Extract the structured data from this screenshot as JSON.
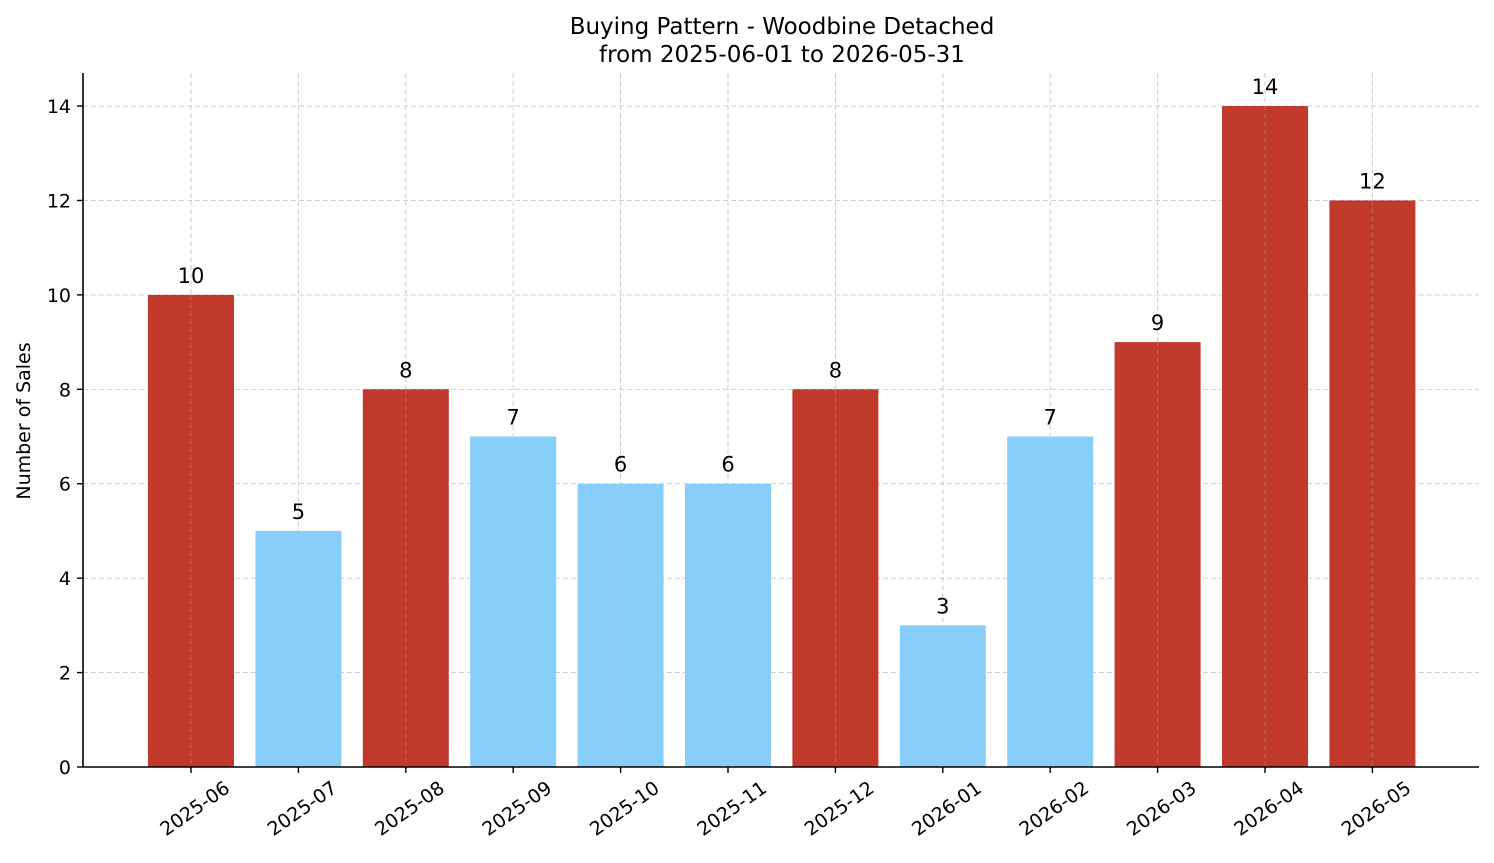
{
  "chart_data": {
    "type": "bar",
    "title_line1": "Buying Pattern - Woodbine Detached",
    "title_line2": "from 2025-06-01 to 2026-05-31",
    "xlabel": "",
    "ylabel": "Number of Sales",
    "ylim": [
      0,
      14.7
    ],
    "yticks": [
      0,
      2,
      4,
      6,
      8,
      10,
      12,
      14
    ],
    "grid": true,
    "categories": [
      "2025-06",
      "2025-07",
      "2025-08",
      "2025-09",
      "2025-10",
      "2025-11",
      "2025-12",
      "2026-01",
      "2026-02",
      "2026-03",
      "2026-04",
      "2026-05"
    ],
    "values": [
      10,
      5,
      8,
      7,
      6,
      6,
      8,
      3,
      7,
      9,
      14,
      12
    ],
    "bar_colors": [
      "#c0392b",
      "#87cefa",
      "#c0392b",
      "#87cefa",
      "#87cefa",
      "#87cefa",
      "#c0392b",
      "#87cefa",
      "#87cefa",
      "#c0392b",
      "#c0392b",
      "#c0392b"
    ]
  }
}
